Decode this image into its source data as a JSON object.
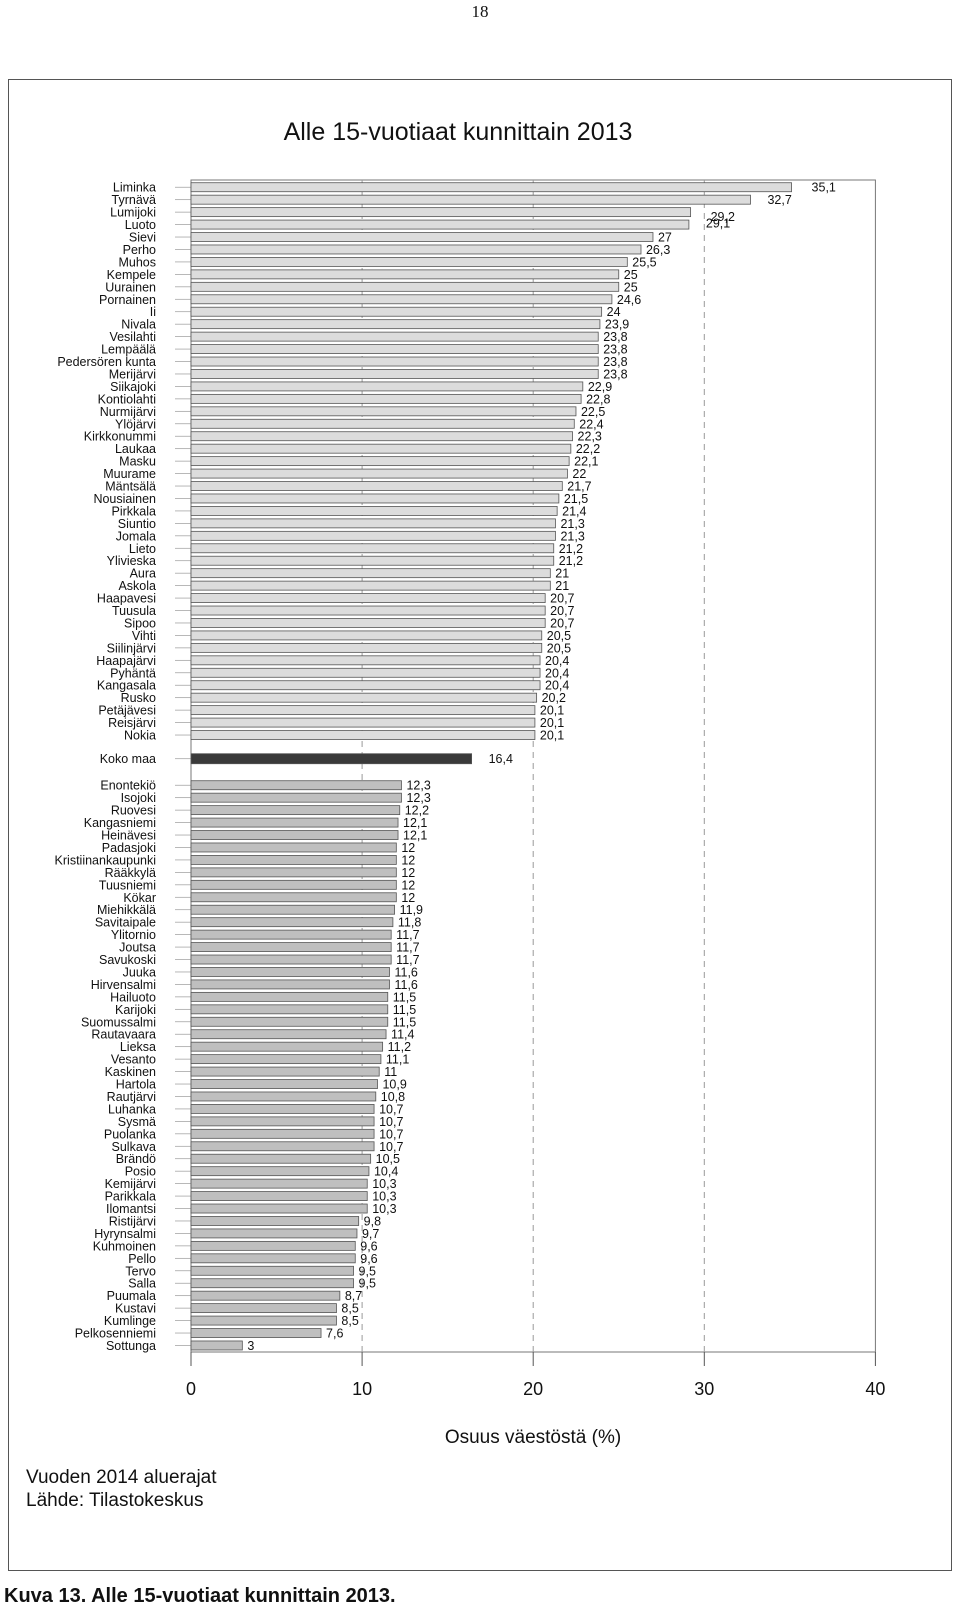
{
  "page_number": "18",
  "figure": {
    "source_note_1": "Vuoden 2014 aluerajat",
    "source_note_2": "Lähde: Tilastokeskus",
    "caption": "Kuva 13. Alle 15-vuotiaat kunnittain 2013."
  },
  "colors": {
    "bar_fill": "#dcdcdc",
    "bar_fill_lower": "#bfbfbf",
    "bar_stroke": "#555555",
    "highlight_bar": "#3a3a3a",
    "grid": "#9a9a9a"
  },
  "chart_data": {
    "type": "bar",
    "orientation": "horizontal",
    "title": "Alle 15-vuotiaat kunnittain 2013",
    "xlabel": "Osuus väestöstä (%)",
    "ylabel": "",
    "xlim": [
      0,
      40
    ],
    "xticks": [
      "0",
      "10",
      "20",
      "30",
      "40"
    ],
    "grid": "vertical dashed at 10, 20, 30",
    "groups": [
      {
        "name": "top",
        "categories": [
          "Liminka",
          "Tyrnävä",
          "Lumijoki",
          "Luoto",
          "Sievi",
          "Perho",
          "Muhos",
          "Kempele",
          "Uurainen",
          "Pornainen",
          "Ii",
          "Nivala",
          "Vesilahti",
          "Lempäälä",
          "Pedersören kunta",
          "Merijärvi",
          "Siikajoki",
          "Kontiolahti",
          "Nurmijärvi",
          "Ylöjärvi",
          "Kirkkonummi",
          "Laukaa",
          "Masku",
          "Muurame",
          "Mäntsälä",
          "Nousiainen",
          "Pirkkala",
          "Siuntio",
          "Jomala",
          "Lieto",
          "Ylivieska",
          "Aura",
          "Askola",
          "Haapavesi",
          "Tuusula",
          "Sipoo",
          "Vihti",
          "Siilinjärvi",
          "Haapajärvi",
          "Pyhäntä",
          "Kangasala",
          "Rusko",
          "Petäjävesi",
          "Reisjärvi",
          "Nokia"
        ],
        "values": [
          35.1,
          32.7,
          29.2,
          29.1,
          27,
          26.3,
          25.5,
          25,
          25,
          24.6,
          24,
          23.9,
          23.8,
          23.8,
          23.8,
          23.8,
          22.9,
          22.8,
          22.5,
          22.4,
          22.3,
          22.2,
          22.1,
          22,
          21.7,
          21.5,
          21.4,
          21.3,
          21.3,
          21.2,
          21.2,
          21,
          21,
          20.7,
          20.7,
          20.7,
          20.5,
          20.5,
          20.4,
          20.4,
          20.4,
          20.2,
          20.1,
          20.1,
          20.1
        ],
        "labels": [
          "35,1",
          "32,7",
          "29,2",
          "29,1",
          "27",
          "26,3",
          "25,5",
          "25",
          "25",
          "24,6",
          "24",
          "23,9",
          "23,8",
          "23,8",
          "23,8",
          "23,8",
          "22,9",
          "22,8",
          "22,5",
          "22,4",
          "22,3",
          "22,2",
          "22,1",
          "22",
          "21,7",
          "21,5",
          "21,4",
          "21,3",
          "21,3",
          "21,2",
          "21,2",
          "21",
          "21",
          "20,7",
          "20,7",
          "20,7",
          "20,5",
          "20,5",
          "20,4",
          "20,4",
          "20,4",
          "20,2",
          "20,1",
          "20,1",
          "20,1"
        ]
      },
      {
        "name": "national",
        "categories": [
          "Koko maa"
        ],
        "values": [
          16.4
        ],
        "labels": [
          "16,4"
        ]
      },
      {
        "name": "bottom",
        "categories": [
          "Enontekiö",
          "Isojoki",
          "Ruovesi",
          "Kangasniemi",
          "Heinävesi",
          "Padasjoki",
          "Kristiinankaupunki",
          "Rääkkylä",
          "Tuusniemi",
          "Kökar",
          "Miehikkälä",
          "Savitaipale",
          "Ylitornio",
          "Joutsa",
          "Savukoski",
          "Juuka",
          "Hirvensalmi",
          "Hailuoto",
          "Karijoki",
          "Suomussalmi",
          "Rautavaara",
          "Lieksa",
          "Vesanto",
          "Kaskinen",
          "Hartola",
          "Rautjärvi",
          "Luhanka",
          "Sysmä",
          "Puolanka",
          "Sulkava",
          "Brändö",
          "Posio",
          "Kemijärvi",
          "Parikkala",
          "Ilomantsi",
          "Ristijärvi",
          "Hyrynsalmi",
          "Kuhmoinen",
          "Pello",
          "Tervo",
          "Salla",
          "Puumala",
          "Kustavi",
          "Kumlinge",
          "Pelkosenniemi",
          "Sottunga"
        ],
        "values": [
          12.3,
          12.3,
          12.2,
          12.1,
          12.1,
          12,
          12,
          12,
          12,
          12,
          11.9,
          11.8,
          11.7,
          11.7,
          11.7,
          11.6,
          11.6,
          11.5,
          11.5,
          11.5,
          11.4,
          11.2,
          11.1,
          11,
          10.9,
          10.8,
          10.7,
          10.7,
          10.7,
          10.7,
          10.5,
          10.4,
          10.3,
          10.3,
          10.3,
          9.8,
          9.7,
          9.6,
          9.6,
          9.5,
          9.5,
          8.7,
          8.5,
          8.5,
          7.6,
          3
        ],
        "labels": [
          "12,3",
          "12,3",
          "12,2",
          "12,1",
          "12,1",
          "12",
          "12",
          "12",
          "12",
          "12",
          "11,9",
          "11,8",
          "11,7",
          "11,7",
          "11,7",
          "11,6",
          "11,6",
          "11,5",
          "11,5",
          "11,5",
          "11,4",
          "11,2",
          "11,1",
          "11",
          "10,9",
          "10,8",
          "10,7",
          "10,7",
          "10,7",
          "10,7",
          "10,5",
          "10,4",
          "10,3",
          "10,3",
          "10,3",
          "9,8",
          "9,7",
          "9,6",
          "9,6",
          "9,5",
          "9,5",
          "8,7",
          "8,5",
          "8,5",
          "7,6",
          "3"
        ]
      }
    ]
  }
}
